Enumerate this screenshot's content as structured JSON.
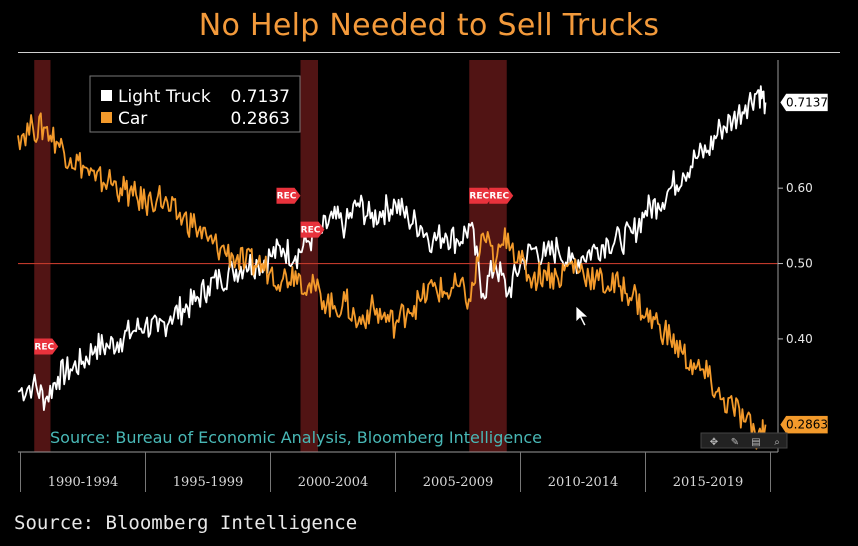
{
  "chart_data": {
    "type": "line",
    "title": "No Help Needed to Sell Trucks",
    "ylim": [
      0.25,
      0.77
    ],
    "yticks": [
      {
        "value": 0.4,
        "label": "0.40"
      },
      {
        "value": 0.5,
        "label": "0.50"
      },
      {
        "value": 0.6,
        "label": "0.60"
      }
    ],
    "x_periods": [
      "1990-1994",
      "1995-1999",
      "2000-2004",
      "2005-2009",
      "2010-2014",
      "2015-2019"
    ],
    "reference_line": 0.5,
    "grid": false,
    "legend_position": "top-left",
    "recessions": [
      {
        "start": 1990.55,
        "end": 1991.2
      },
      {
        "start": 2001.2,
        "end": 2001.9
      },
      {
        "start": 2007.95,
        "end": 2009.45
      }
    ],
    "rec_label": "REC",
    "series": [
      {
        "name": "Light Truck",
        "label": "Light Truck 0.7137",
        "last_value": "0.7137",
        "color": "#ffffff",
        "points": [
          [
            1989.9,
            0.33
          ],
          [
            1990.5,
            0.34
          ],
          [
            1991.0,
            0.32
          ],
          [
            1991.5,
            0.35
          ],
          [
            1992.0,
            0.36
          ],
          [
            1992.5,
            0.37
          ],
          [
            1993.0,
            0.39
          ],
          [
            1993.5,
            0.39
          ],
          [
            1994.0,
            0.4
          ],
          [
            1994.5,
            0.41
          ],
          [
            1995.0,
            0.42
          ],
          [
            1995.5,
            0.41
          ],
          [
            1996.0,
            0.43
          ],
          [
            1996.5,
            0.44
          ],
          [
            1997.0,
            0.45
          ],
          [
            1997.5,
            0.47
          ],
          [
            1998.0,
            0.48
          ],
          [
            1998.5,
            0.49
          ],
          [
            1999.0,
            0.5
          ],
          [
            1999.5,
            0.5
          ],
          [
            2000.0,
            0.51
          ],
          [
            2000.5,
            0.52
          ],
          [
            2001.0,
            0.51
          ],
          [
            2001.5,
            0.53
          ],
          [
            2002.0,
            0.54
          ],
          [
            2002.5,
            0.56
          ],
          [
            2003.0,
            0.55
          ],
          [
            2003.5,
            0.58
          ],
          [
            2004.0,
            0.56
          ],
          [
            2004.5,
            0.57
          ],
          [
            2005.0,
            0.58
          ],
          [
            2005.5,
            0.56
          ],
          [
            2006.0,
            0.55
          ],
          [
            2006.5,
            0.53
          ],
          [
            2007.0,
            0.54
          ],
          [
            2007.5,
            0.53
          ],
          [
            2008.0,
            0.55
          ],
          [
            2008.5,
            0.46
          ],
          [
            2009.0,
            0.5
          ],
          [
            2009.5,
            0.46
          ],
          [
            2010.0,
            0.5
          ],
          [
            2010.5,
            0.52
          ],
          [
            2011.0,
            0.51
          ],
          [
            2011.5,
            0.52
          ],
          [
            2012.0,
            0.5
          ],
          [
            2012.5,
            0.51
          ],
          [
            2013.0,
            0.52
          ],
          [
            2013.5,
            0.53
          ],
          [
            2014.0,
            0.53
          ],
          [
            2014.5,
            0.54
          ],
          [
            2015.0,
            0.57
          ],
          [
            2015.5,
            0.58
          ],
          [
            2016.0,
            0.6
          ],
          [
            2016.5,
            0.62
          ],
          [
            2017.0,
            0.64
          ],
          [
            2017.5,
            0.65
          ],
          [
            2018.0,
            0.68
          ],
          [
            2018.5,
            0.69
          ],
          [
            2019.0,
            0.71
          ],
          [
            2019.5,
            0.73
          ],
          [
            2019.8,
            0.7137
          ]
        ]
      },
      {
        "name": "Car",
        "label": "Car 0.2863",
        "last_value": "0.2863",
        "color": "#f39a2b",
        "points": [
          [
            1989.9,
            0.67
          ],
          [
            1990.5,
            0.68
          ],
          [
            1991.0,
            0.68
          ],
          [
            1991.5,
            0.66
          ],
          [
            1992.0,
            0.64
          ],
          [
            1992.5,
            0.63
          ],
          [
            1993.0,
            0.61
          ],
          [
            1993.5,
            0.61
          ],
          [
            1994.0,
            0.6
          ],
          [
            1994.5,
            0.59
          ],
          [
            1995.0,
            0.58
          ],
          [
            1995.5,
            0.59
          ],
          [
            1996.0,
            0.57
          ],
          [
            1996.5,
            0.56
          ],
          [
            1997.0,
            0.55
          ],
          [
            1997.5,
            0.53
          ],
          [
            1998.0,
            0.52
          ],
          [
            1998.5,
            0.51
          ],
          [
            1999.0,
            0.5
          ],
          [
            1999.5,
            0.5
          ],
          [
            2000.0,
            0.49
          ],
          [
            2000.5,
            0.48
          ],
          [
            2001.0,
            0.49
          ],
          [
            2001.5,
            0.47
          ],
          [
            2002.0,
            0.46
          ],
          [
            2002.5,
            0.44
          ],
          [
            2003.0,
            0.45
          ],
          [
            2003.5,
            0.42
          ],
          [
            2004.0,
            0.44
          ],
          [
            2004.5,
            0.43
          ],
          [
            2005.0,
            0.42
          ],
          [
            2005.5,
            0.44
          ],
          [
            2006.0,
            0.45
          ],
          [
            2006.5,
            0.47
          ],
          [
            2007.0,
            0.46
          ],
          [
            2007.5,
            0.47
          ],
          [
            2008.0,
            0.45
          ],
          [
            2008.5,
            0.54
          ],
          [
            2009.0,
            0.5
          ],
          [
            2009.5,
            0.54
          ],
          [
            2010.0,
            0.5
          ],
          [
            2010.5,
            0.48
          ],
          [
            2011.0,
            0.49
          ],
          [
            2011.5,
            0.48
          ],
          [
            2012.0,
            0.5
          ],
          [
            2012.5,
            0.49
          ],
          [
            2013.0,
            0.48
          ],
          [
            2013.5,
            0.47
          ],
          [
            2014.0,
            0.47
          ],
          [
            2014.5,
            0.46
          ],
          [
            2015.0,
            0.43
          ],
          [
            2015.5,
            0.42
          ],
          [
            2016.0,
            0.4
          ],
          [
            2016.5,
            0.38
          ],
          [
            2017.0,
            0.36
          ],
          [
            2017.5,
            0.35
          ],
          [
            2018.0,
            0.32
          ],
          [
            2018.5,
            0.31
          ],
          [
            2019.0,
            0.29
          ],
          [
            2019.5,
            0.27
          ],
          [
            2019.8,
            0.2863
          ]
        ]
      }
    ]
  },
  "legend": {
    "truck_name": "Light Truck",
    "truck_value": "0.7137",
    "car_name": "Car",
    "car_value": "0.2863"
  },
  "inner_source": "Source: Bureau of Economic Analysis, Bloomberg Intelligence",
  "footer_source": "Source: Bloomberg Intelligence",
  "toolbar": [
    "move-icon",
    "pencil-icon",
    "table-icon",
    "zoom-icon"
  ]
}
